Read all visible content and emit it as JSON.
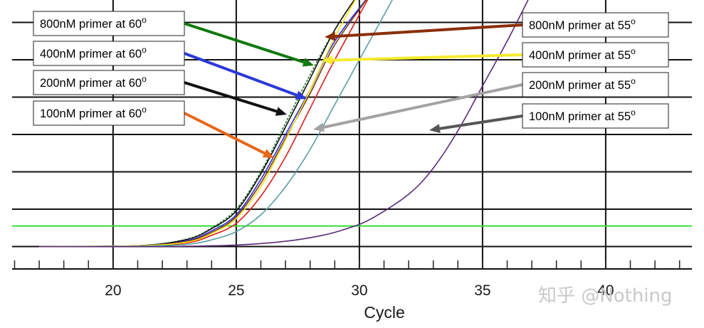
{
  "chart_data": {
    "type": "line",
    "title": "",
    "xlabel": "Cycle",
    "ylabel": "",
    "xlim": [
      15.9,
      43.5
    ],
    "ylim": [
      -0.6,
      6.6
    ],
    "x_ticks": [
      20,
      25,
      30,
      35,
      40
    ],
    "y_gridlines": [
      0,
      1,
      2,
      3,
      4,
      5,
      6
    ],
    "grid": true,
    "threshold": {
      "y": 0.55,
      "color": "#33dd33"
    },
    "series": [
      {
        "name": "800nM primer at 60°",
        "color": "#1e7a2a",
        "dashed": true,
        "x": [
          17,
          21,
          23,
          24,
          25,
          26,
          27,
          28,
          29,
          30
        ],
        "y": [
          0,
          0.02,
          0.2,
          0.5,
          1.0,
          2.0,
          3.3,
          4.6,
          5.8,
          6.8
        ]
      },
      {
        "name": "400nM primer at 60°",
        "color": "#2a2ae0",
        "x": [
          17,
          21,
          23,
          24,
          25,
          26,
          27,
          28,
          29,
          30.5
        ],
        "y": [
          0,
          0.02,
          0.16,
          0.42,
          0.85,
          1.8,
          3.0,
          4.2,
          5.5,
          6.8
        ]
      },
      {
        "name": "200nM primer at 60°",
        "color": "#111111",
        "x": [
          17,
          21,
          23,
          24,
          25,
          26,
          27,
          28,
          29,
          30
        ],
        "y": [
          0,
          0.02,
          0.19,
          0.48,
          0.95,
          1.95,
          3.2,
          4.5,
          5.8,
          6.8
        ]
      },
      {
        "name": "100nM primer at 60°",
        "color": "#e21b1b",
        "x": [
          17,
          21,
          23,
          24,
          25,
          26,
          27,
          28,
          29,
          30.5
        ],
        "y": [
          0,
          0.02,
          0.1,
          0.3,
          0.62,
          1.35,
          2.4,
          3.7,
          5.0,
          6.8
        ]
      },
      {
        "name": "800nM primer at 55°",
        "color": "#7a3a10",
        "x": [
          17,
          21,
          23,
          24,
          25,
          26,
          27,
          28,
          29,
          30.5
        ],
        "y": [
          0,
          0.02,
          0.14,
          0.38,
          0.8,
          1.7,
          2.9,
          4.1,
          5.4,
          6.8
        ]
      },
      {
        "name": "400nM primer at 55°",
        "color": "#f2e21a",
        "x": [
          17,
          21,
          23,
          24,
          25,
          26,
          27,
          28,
          29,
          30
        ],
        "y": [
          0,
          0.02,
          0.12,
          0.35,
          0.75,
          1.6,
          2.85,
          4.2,
          5.6,
          6.8
        ]
      },
      {
        "name": "200nM primer at 55°",
        "color": "#5a9ea0",
        "x": [
          17,
          21,
          23,
          24,
          25,
          26,
          27,
          28,
          29,
          30,
          31.5
        ],
        "y": [
          0,
          0.01,
          0.06,
          0.18,
          0.4,
          0.85,
          1.6,
          2.6,
          3.8,
          5.0,
          6.8
        ]
      },
      {
        "name": "100nM primer at 55°",
        "color": "#5a2a7a",
        "x": [
          17,
          22,
          25,
          27,
          28.5,
          29.5,
          30.5,
          32,
          33,
          34,
          35,
          36,
          37
        ],
        "y": [
          0,
          0.0,
          0.04,
          0.14,
          0.3,
          0.48,
          0.75,
          1.4,
          2.1,
          3.1,
          4.3,
          5.5,
          6.8
        ]
      }
    ],
    "callouts": [
      {
        "label": "800nM primer at 60",
        "sup": "o",
        "color": "#0f7a0f"
      },
      {
        "label": "400nM primer at 60",
        "sup": "o",
        "color": "#2a3ad8"
      },
      {
        "label": "200nM primer at 60",
        "sup": "o",
        "color": "#111111"
      },
      {
        "label": "100nM primer at 60",
        "sup": "o",
        "color": "#e8661a"
      },
      {
        "label": "800nM primer at 55",
        "sup": "o",
        "color": "#8a2e06"
      },
      {
        "label": "400nM primer at 55",
        "sup": "o",
        "color": "#f5ec30"
      },
      {
        "label": "200nM primer at 55",
        "sup": "o",
        "color": "#a3a3a3"
      },
      {
        "label": "100nM primer at 55",
        "sup": "o",
        "color": "#555555"
      }
    ]
  },
  "watermark": "知乎 @Nothing"
}
